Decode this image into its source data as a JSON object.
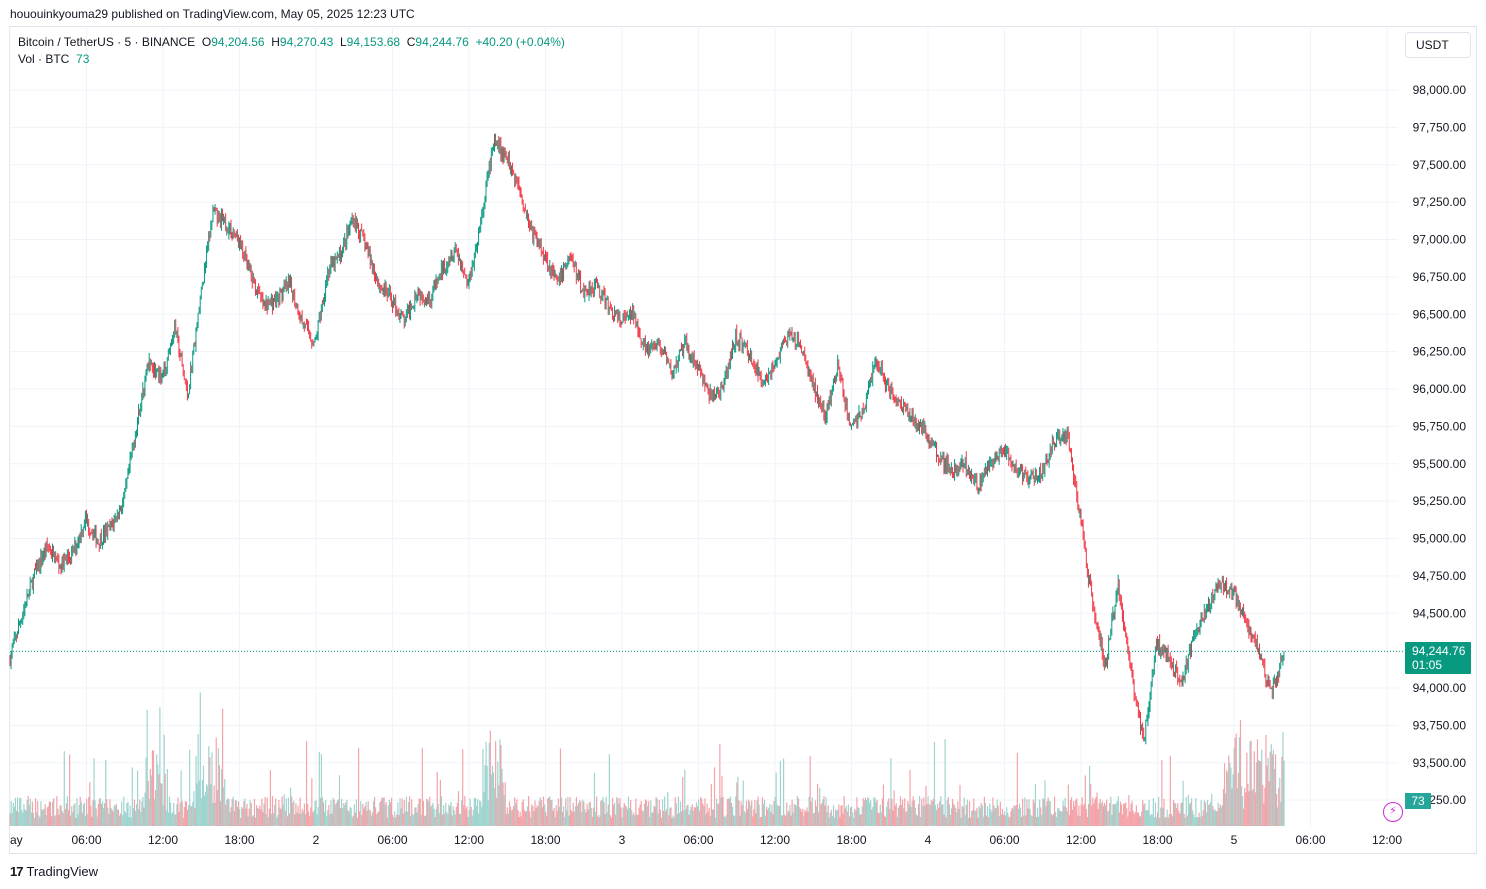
{
  "published": "hououinkyouma29 published on TradingView.com, May 05, 2025 12:23 UTC",
  "legend": {
    "symbol": "Bitcoin / TetherUS · 5 · BINANCE",
    "o_label": "O",
    "o_value": "94,204.56",
    "h_label": "H",
    "h_value": "94,270.43",
    "l_label": "L",
    "l_value": "94,153.68",
    "c_label": "C",
    "c_value": "94,244.76",
    "change": "+40.20 (+0.04%)",
    "vol_label": "Vol · BTC",
    "vol_value": "73"
  },
  "currency": "USDT",
  "price_badge": {
    "price": "94,244.76",
    "countdown": "01:05"
  },
  "volume_badge": "73",
  "brand": "TradingView",
  "colors": {
    "up": "#089981",
    "down": "#f23645",
    "vol_up": "#9fd4cf",
    "vol_down": "#f4a3a8",
    "grid": "#f0f3fa"
  },
  "icons": {
    "brand_logo": "tradingview-logo-icon",
    "alert": "flash-icon"
  },
  "chart_data": {
    "type": "candlestick",
    "interval": "5",
    "y_ticks": [
      93250,
      93500,
      93750,
      94000,
      94250,
      94500,
      94750,
      95000,
      95250,
      95500,
      95750,
      96000,
      96250,
      96500,
      96750,
      97000,
      97250,
      97500,
      97750,
      98000
    ],
    "y_tick_labels": [
      "93,250.00",
      "93,500.00",
      "93,750.00",
      "94,000.00",
      "94,250.00",
      "94,500.00",
      "94,750.00",
      "95,000.00",
      "95,250.00",
      "95,500.00",
      "95,750.00",
      "96,000.00",
      "96,250.00",
      "96,500.00",
      "96,750.00",
      "97,000.00",
      "97,250.00",
      "97,500.00",
      "97,750.00",
      "98,000.00"
    ],
    "x_tick_labels": [
      {
        "label": "ay",
        "hours": 0
      },
      {
        "label": "06:00",
        "hours": 6
      },
      {
        "label": "12:00",
        "hours": 12
      },
      {
        "label": "18:00",
        "hours": 18
      },
      {
        "label": "2",
        "hours": 24
      },
      {
        "label": "06:00",
        "hours": 30
      },
      {
        "label": "12:00",
        "hours": 36
      },
      {
        "label": "18:00",
        "hours": 42
      },
      {
        "label": "3",
        "hours": 48
      },
      {
        "label": "06:00",
        "hours": 54
      },
      {
        "label": "12:00",
        "hours": 60
      },
      {
        "label": "18:00",
        "hours": 66
      },
      {
        "label": "4",
        "hours": 72
      },
      {
        "label": "06:00",
        "hours": 78
      },
      {
        "label": "12:00",
        "hours": 84
      },
      {
        "label": "18:00",
        "hours": 90
      },
      {
        "label": "5",
        "hours": 96
      },
      {
        "label": "06:00",
        "hours": 102
      },
      {
        "label": "12:00",
        "hours": 108
      }
    ],
    "price_path": [
      [
        0,
        94180
      ],
      [
        1,
        94480
      ],
      [
        2,
        94760
      ],
      [
        3,
        94950
      ],
      [
        4,
        94820
      ],
      [
        5,
        94900
      ],
      [
        6,
        95130
      ],
      [
        7,
        94980
      ],
      [
        8,
        95080
      ],
      [
        9,
        95250
      ],
      [
        10,
        95750
      ],
      [
        11,
        96200
      ],
      [
        12,
        96050
      ],
      [
        13,
        96420
      ],
      [
        14,
        95950
      ],
      [
        15,
        96600
      ],
      [
        16,
        97180
      ],
      [
        17,
        97100
      ],
      [
        18,
        97000
      ],
      [
        19,
        96750
      ],
      [
        20,
        96550
      ],
      [
        21,
        96600
      ],
      [
        22,
        96700
      ],
      [
        23,
        96450
      ],
      [
        24,
        96300
      ],
      [
        25,
        96780
      ],
      [
        26,
        96900
      ],
      [
        27,
        97150
      ],
      [
        28,
        96950
      ],
      [
        29,
        96700
      ],
      [
        30,
        96600
      ],
      [
        31,
        96450
      ],
      [
        32,
        96650
      ],
      [
        33,
        96600
      ],
      [
        34,
        96800
      ],
      [
        35,
        96950
      ],
      [
        36,
        96700
      ],
      [
        37,
        97100
      ],
      [
        38,
        97650
      ],
      [
        39,
        97550
      ],
      [
        40,
        97350
      ],
      [
        41,
        97050
      ],
      [
        42,
        96900
      ],
      [
        43,
        96700
      ],
      [
        44,
        96900
      ],
      [
        45,
        96650
      ],
      [
        46,
        96700
      ],
      [
        47,
        96550
      ],
      [
        48,
        96450
      ],
      [
        49,
        96500
      ],
      [
        50,
        96250
      ],
      [
        51,
        96300
      ],
      [
        52,
        96100
      ],
      [
        53,
        96300
      ],
      [
        54,
        96150
      ],
      [
        55,
        95950
      ],
      [
        56,
        96000
      ],
      [
        57,
        96350
      ],
      [
        58,
        96250
      ],
      [
        59,
        96050
      ],
      [
        60,
        96150
      ],
      [
        61,
        96350
      ],
      [
        62,
        96300
      ],
      [
        63,
        96050
      ],
      [
        64,
        95800
      ],
      [
        65,
        96150
      ],
      [
        66,
        95750
      ],
      [
        67,
        95850
      ],
      [
        68,
        96200
      ],
      [
        69,
        96000
      ],
      [
        70,
        95900
      ],
      [
        71,
        95800
      ],
      [
        72,
        95700
      ],
      [
        73,
        95550
      ],
      [
        74,
        95450
      ],
      [
        75,
        95500
      ],
      [
        76,
        95350
      ],
      [
        77,
        95500
      ],
      [
        78,
        95600
      ],
      [
        79,
        95450
      ],
      [
        80,
        95400
      ],
      [
        81,
        95450
      ],
      [
        82,
        95650
      ],
      [
        83,
        95700
      ],
      [
        84,
        95150
      ],
      [
        85,
        94550
      ],
      [
        86,
        94150
      ],
      [
        87,
        94700
      ],
      [
        88,
        94100
      ],
      [
        89,
        93650
      ],
      [
        90,
        94300
      ],
      [
        91,
        94200
      ],
      [
        92,
        94050
      ],
      [
        93,
        94350
      ],
      [
        94,
        94550
      ],
      [
        95,
        94700
      ],
      [
        96,
        94650
      ],
      [
        97,
        94450
      ],
      [
        98,
        94250
      ],
      [
        99,
        93950
      ],
      [
        100,
        94244.76
      ]
    ],
    "price_path_note_x": "approx. bar-hour along the x axis",
    "last_price": 94244.76
  }
}
